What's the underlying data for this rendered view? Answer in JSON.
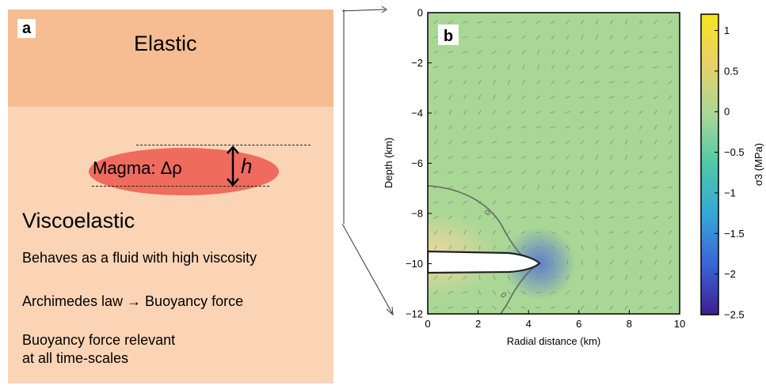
{
  "panel_a": {
    "label": "a",
    "elastic": "Elastic",
    "magma": "Magma: Δρ",
    "h": "h",
    "viscoelastic": "Viscoelastic",
    "lines": [
      "Behaves as a fluid with high viscosity",
      "Archimedes law → Buoyancy force",
      "Buoyancy force relevant",
      "at all time-scales"
    ]
  },
  "panel_b": {
    "label": "b",
    "contour_label": "0",
    "colors": {
      "top": "#a9d796",
      "near_tip": "#5a78cf",
      "near_source": "#f5d79d",
      "magma_body": "#ffffff"
    }
  },
  "chart_data": {
    "type": "heatmap",
    "xlabel": "Radial distance (km)",
    "ylabel": "Depth (km)",
    "xlim": [
      0,
      10
    ],
    "ylim": [
      -12,
      0
    ],
    "xticks": [
      "0",
      "2",
      "4",
      "6",
      "8",
      "10"
    ],
    "yticks": [
      "0",
      "−2",
      "−4",
      "−6",
      "−8",
      "−10",
      "−12"
    ],
    "colorbar": {
      "label": "σ3 (MPa)",
      "range": [
        -2.5,
        1.2
      ],
      "ticks": [
        "1",
        "0.5",
        "0",
        "−0.5",
        "−1",
        "−1.5",
        "−2",
        "−2.5"
      ],
      "colors": [
        "#3c1e8f",
        "#3b64d6",
        "#36a6d8",
        "#4fc8a8",
        "#a9d796",
        "#e7d16a",
        "#f6e51c"
      ]
    },
    "magma_body": {
      "depth_km": -10,
      "radius_km": 4.4
    },
    "grid": false
  }
}
